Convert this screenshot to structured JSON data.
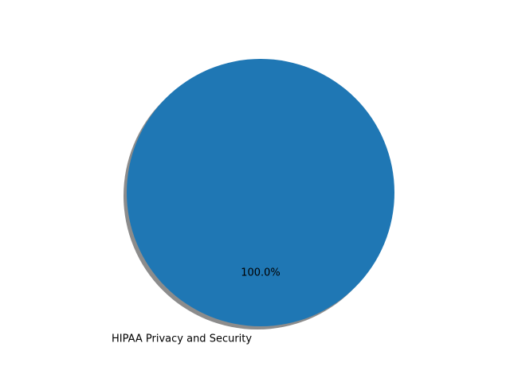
{
  "chart_data": {
    "type": "pie",
    "title": "",
    "shadow": true,
    "slices": [
      {
        "label": "HIPAA Privacy and Security",
        "value": 1,
        "percent_label": "100.0%",
        "color": "#1f77b4"
      }
    ],
    "shadow_color": "#7f7f7f"
  }
}
